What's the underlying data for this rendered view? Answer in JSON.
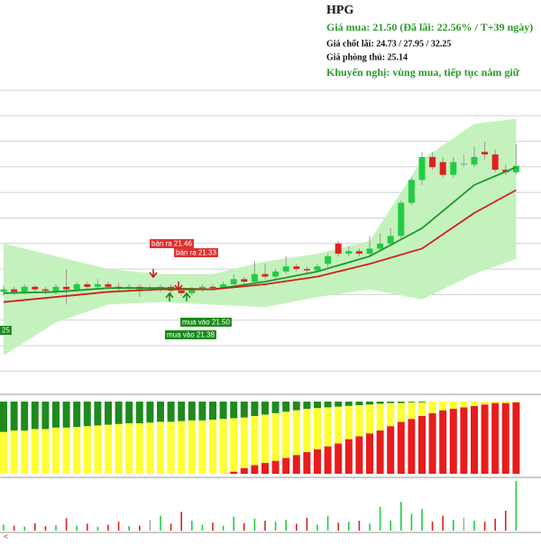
{
  "chart_data": {
    "type": "candlestick",
    "ylim": [
      17.25,
      29.2
    ],
    "up_color": "#22cc44",
    "down_color": "#e02020",
    "flat_color": "#aaaaaa",
    "ohlc": [
      [
        21.1,
        21.35,
        20.95,
        21.2
      ],
      [
        21.2,
        21.3,
        21.0,
        21.1
      ],
      [
        21.1,
        21.4,
        21.0,
        21.3
      ],
      [
        21.3,
        21.35,
        21.1,
        21.2
      ],
      [
        21.2,
        21.3,
        21.0,
        21.15
      ],
      [
        21.1,
        21.4,
        21.0,
        21.3
      ],
      [
        21.3,
        22.0,
        20.6,
        21.2
      ],
      [
        21.2,
        21.5,
        21.1,
        21.4
      ],
      [
        21.4,
        21.5,
        21.2,
        21.3
      ],
      [
        21.3,
        21.6,
        21.2,
        21.4
      ],
      [
        21.4,
        21.5,
        21.2,
        21.3
      ],
      [
        21.3,
        21.45,
        21.15,
        21.25
      ],
      [
        21.25,
        21.4,
        21.15,
        21.3
      ],
      [
        21.3,
        21.4,
        20.9,
        21.2
      ],
      [
        21.25,
        21.35,
        21.15,
        21.25
      ],
      [
        21.25,
        21.4,
        21.1,
        21.3
      ],
      [
        21.3,
        21.4,
        20.9,
        21.15
      ],
      [
        21.15,
        21.25,
        20.95,
        21.05
      ],
      [
        21.05,
        21.3,
        20.95,
        21.2
      ],
      [
        21.2,
        21.4,
        21.1,
        21.3
      ],
      [
        21.3,
        21.4,
        21.15,
        21.25
      ],
      [
        21.25,
        21.5,
        21.2,
        21.4
      ],
      [
        21.4,
        21.8,
        21.3,
        21.6
      ],
      [
        21.6,
        21.7,
        21.4,
        21.5
      ],
      [
        21.5,
        22.3,
        21.4,
        21.8
      ],
      [
        21.8,
        22.2,
        21.6,
        21.7
      ],
      [
        21.7,
        22.0,
        21.6,
        21.9
      ],
      [
        21.9,
        22.5,
        21.8,
        22.1
      ],
      [
        22.1,
        22.2,
        21.9,
        22.0
      ],
      [
        22.0,
        22.1,
        21.85,
        21.95
      ],
      [
        21.95,
        22.2,
        21.9,
        22.1
      ],
      [
        22.2,
        22.6,
        22.0,
        22.5
      ],
      [
        23.0,
        23.1,
        22.5,
        22.6
      ],
      [
        22.6,
        22.9,
        22.5,
        22.7
      ],
      [
        22.7,
        22.8,
        22.5,
        22.6
      ],
      [
        22.6,
        23.3,
        22.5,
        22.8
      ],
      [
        22.8,
        23.4,
        22.7,
        23.0
      ],
      [
        23.0,
        23.6,
        22.9,
        23.3
      ],
      [
        23.3,
        24.7,
        23.2,
        24.6
      ],
      [
        24.6,
        25.6,
        24.5,
        25.5
      ],
      [
        25.5,
        26.6,
        25.3,
        26.4
      ],
      [
        26.4,
        26.6,
        25.9,
        26.0
      ],
      [
        26.2,
        26.4,
        25.6,
        25.7
      ],
      [
        25.7,
        26.4,
        25.6,
        26.2
      ],
      [
        26.15,
        26.5,
        26.0,
        26.15
      ],
      [
        26.1,
        26.8,
        26.0,
        26.4
      ],
      [
        26.6,
        27.0,
        26.3,
        26.5
      ],
      [
        26.5,
        26.7,
        25.8,
        25.9
      ],
      [
        25.9,
        26.1,
        25.7,
        25.8
      ],
      [
        25.8,
        26.9,
        25.7,
        26.05
      ]
    ],
    "bands": {
      "color": "#c4f2bc",
      "x": [
        0,
        5,
        10,
        15,
        20,
        25,
        30,
        35,
        40,
        45,
        49
      ],
      "upper": [
        23.0,
        22.5,
        22.0,
        21.8,
        21.8,
        22.3,
        22.6,
        23.1,
        26.3,
        27.7,
        27.9
      ],
      "lower": [
        18.6,
        19.9,
        20.6,
        20.7,
        20.6,
        20.5,
        20.9,
        21.2,
        20.8,
        21.8,
        22.4
      ]
    },
    "moving_averages": [
      {
        "color": "#1a9a2a",
        "x": [
          0,
          5,
          10,
          15,
          20,
          25,
          30,
          35,
          40,
          45,
          49
        ],
        "values": [
          21.05,
          21.1,
          21.25,
          21.25,
          21.2,
          21.5,
          21.9,
          22.5,
          23.6,
          25.3,
          26.0
        ]
      },
      {
        "color": "#d02020",
        "x": [
          0,
          5,
          10,
          15,
          20,
          25,
          30,
          35,
          40,
          45,
          49
        ],
        "values": [
          20.7,
          20.9,
          21.1,
          21.2,
          21.2,
          21.4,
          21.7,
          22.2,
          22.8,
          24.2,
          25.1
        ]
      }
    ],
    "signals": [
      {
        "label": "bán ra 21.46",
        "type": "sell"
      },
      {
        "label": "bán ra 21.33",
        "type": "sell"
      },
      {
        "label": "mua vào 21.50",
        "type": "buy"
      },
      {
        "label": "mua vào 21.38",
        "type": "buy"
      },
      {
        "label": "25",
        "type": "buy"
      }
    ],
    "strength": {
      "ylim": [
        0,
        100
      ],
      "series": [
        {
          "color": "#e81c1c",
          "values": [
            0,
            0,
            0,
            0,
            0,
            0,
            0,
            0,
            0,
            0,
            0,
            0,
            0,
            0,
            0,
            0,
            0,
            0,
            0,
            0,
            0,
            0,
            3,
            8,
            12,
            15,
            18,
            22,
            26,
            30,
            34,
            38,
            42,
            48,
            52,
            56,
            60,
            66,
            72,
            76,
            80,
            84,
            88,
            90,
            92,
            94,
            96,
            98,
            98,
            99
          ]
        },
        {
          "color": "#ffff33",
          "values": [
            58,
            60,
            60,
            62,
            62,
            64,
            64,
            65,
            66,
            67,
            68,
            69,
            70,
            70,
            71,
            72,
            72,
            73,
            74,
            74,
            75,
            76,
            74,
            70,
            68,
            67,
            66,
            64,
            62,
            60,
            57,
            54,
            51,
            46,
            43,
            40,
            37,
            32,
            26,
            23,
            19,
            16,
            12,
            10,
            8,
            6,
            4,
            2,
            2,
            1
          ]
        },
        {
          "color": "#1e8a1e",
          "values": [
            42,
            40,
            40,
            38,
            38,
            36,
            36,
            35,
            34,
            33,
            32,
            31,
            30,
            30,
            29,
            28,
            28,
            27,
            26,
            26,
            25,
            24,
            23,
            22,
            20,
            18,
            16,
            14,
            12,
            10,
            9,
            8,
            7,
            6,
            5,
            4,
            3,
            2,
            2,
            1,
            1,
            0,
            0,
            0,
            0,
            0,
            0,
            0,
            0,
            0
          ]
        }
      ]
    },
    "volume": {
      "ylim": [
        0,
        100
      ],
      "values": [
        12,
        10,
        8,
        15,
        9,
        11,
        25,
        10,
        14,
        8,
        12,
        18,
        9,
        10,
        22,
        30,
        14,
        38,
        20,
        12,
        16,
        10,
        28,
        15,
        24,
        20,
        18,
        22,
        14,
        26,
        12,
        30,
        16,
        18,
        20,
        14,
        48,
        20,
        58,
        34,
        44,
        18,
        30,
        22,
        26,
        20,
        18,
        24,
        40,
        100
      ]
    }
  },
  "info": {
    "symbol": "HPG",
    "buy_line": "Giá mua: 21.50 (Đã lãi: 22.56% / T+39 ngày)",
    "take_profit_line": "Giá chốt lãi: 24.73 / 27.95 / 32.25",
    "stop_line": "Giá phòng thủ: 25.14",
    "recommendation_line": "Khuyến nghị: vùng mua, tiếp tục nắm giữ"
  },
  "nav": {
    "scroll_left": "<"
  }
}
